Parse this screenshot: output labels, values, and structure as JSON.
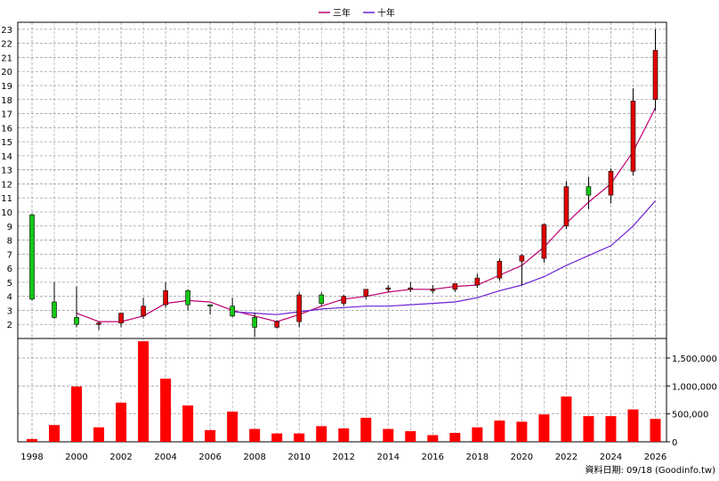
{
  "legend": [
    {
      "label": "三年",
      "color": "#c0006e"
    },
    {
      "label": "十年",
      "color": "#6a1fd6"
    }
  ],
  "footer": {
    "source": "資料日期: 09/18  (Goodinfo.tw)"
  },
  "colors": {
    "up": "#e00000",
    "down": "#14c814",
    "volume": "#ff0000",
    "grid": "#a0a0a0",
    "axis": "#000000"
  },
  "chart_data": {
    "type": "candlestick",
    "price_axis": {
      "ylim": [
        1,
        23.5
      ],
      "ticks": [
        2,
        3,
        4,
        5,
        6,
        7,
        8,
        9,
        10,
        11,
        12,
        13,
        14,
        15,
        16,
        17,
        18,
        19,
        20,
        21,
        22,
        23
      ]
    },
    "volume_axis": {
      "ylim": [
        0,
        1850000
      ],
      "ticks": [
        0,
        500000,
        1000000,
        1500000
      ],
      "tick_labels": [
        "0",
        "500,000",
        "1,000,000",
        "1,500,000"
      ]
    },
    "x_axis": {
      "xlim": [
        1998,
        2026.5
      ],
      "ticks": [
        1998,
        2000,
        2002,
        2004,
        2006,
        2008,
        2010,
        2012,
        2014,
        2016,
        2018,
        2020,
        2022,
        2024,
        2026
      ]
    },
    "candles": [
      {
        "year": 1998,
        "open": 9.8,
        "high": 9.9,
        "low": 3.7,
        "close": 3.8
      },
      {
        "year": 1999,
        "open": 3.6,
        "high": 5.0,
        "low": 2.4,
        "close": 2.5
      },
      {
        "year": 2000,
        "open": 2.5,
        "high": 4.7,
        "low": 1.8,
        "close": 2.0
      },
      {
        "year": 2001,
        "open": 2.0,
        "high": 2.2,
        "low": 1.6,
        "close": 2.1
      },
      {
        "year": 2002,
        "open": 2.1,
        "high": 2.8,
        "low": 1.8,
        "close": 2.8
      },
      {
        "year": 2003,
        "open": 2.6,
        "high": 3.9,
        "low": 2.4,
        "close": 3.3
      },
      {
        "year": 2004,
        "open": 3.4,
        "high": 5.0,
        "low": 3.2,
        "close": 4.4
      },
      {
        "year": 2005,
        "open": 4.4,
        "high": 4.5,
        "low": 3.0,
        "close": 3.4
      },
      {
        "year": 2006,
        "open": 3.4,
        "high": 3.4,
        "low": 2.7,
        "close": 3.3
      },
      {
        "year": 2007,
        "open": 3.3,
        "high": 3.9,
        "low": 2.5,
        "close": 2.6
      },
      {
        "year": 2008,
        "open": 2.5,
        "high": 2.8,
        "low": 1.1,
        "close": 1.8
      },
      {
        "year": 2009,
        "open": 1.8,
        "high": 2.3,
        "low": 1.7,
        "close": 2.2
      },
      {
        "year": 2010,
        "open": 2.2,
        "high": 4.3,
        "low": 1.8,
        "close": 4.1
      },
      {
        "year": 2011,
        "open": 4.1,
        "high": 4.3,
        "low": 3.3,
        "close": 3.5
      },
      {
        "year": 2012,
        "open": 3.5,
        "high": 4.1,
        "low": 3.3,
        "close": 4.0
      },
      {
        "year": 2013,
        "open": 4.0,
        "high": 4.5,
        "low": 3.8,
        "close": 4.5
      },
      {
        "year": 2014,
        "open": 4.5,
        "high": 4.8,
        "low": 4.3,
        "close": 4.6
      },
      {
        "year": 2015,
        "open": 4.5,
        "high": 5.0,
        "low": 4.3,
        "close": 4.6
      },
      {
        "year": 2016,
        "open": 4.4,
        "high": 4.8,
        "low": 4.2,
        "close": 4.5
      },
      {
        "year": 2017,
        "open": 4.5,
        "high": 4.9,
        "low": 4.3,
        "close": 4.9
      },
      {
        "year": 2018,
        "open": 4.8,
        "high": 5.6,
        "low": 4.6,
        "close": 5.3
      },
      {
        "year": 2019,
        "open": 5.3,
        "high": 6.7,
        "low": 5.1,
        "close": 6.5
      },
      {
        "year": 2020,
        "open": 6.5,
        "high": 7.0,
        "low": 4.8,
        "close": 6.9
      },
      {
        "year": 2021,
        "open": 6.7,
        "high": 9.2,
        "low": 6.4,
        "close": 9.1
      },
      {
        "year": 2022,
        "open": 9.0,
        "high": 12.2,
        "low": 8.8,
        "close": 11.8
      },
      {
        "year": 2023,
        "open": 11.8,
        "high": 12.5,
        "low": 10.2,
        "close": 11.2
      },
      {
        "year": 2024,
        "open": 11.2,
        "high": 13.1,
        "low": 10.6,
        "close": 12.9
      },
      {
        "year": 2025,
        "open": 12.9,
        "high": 18.8,
        "low": 12.6,
        "close": 17.9
      },
      {
        "year": 2026,
        "open": 18.0,
        "high": 23.0,
        "low": 17.2,
        "close": 21.5
      }
    ],
    "series": [
      {
        "name": "三年",
        "x": [
          2000,
          2001,
          2002,
          2003,
          2004,
          2005,
          2006,
          2007,
          2008,
          2009,
          2010,
          2011,
          2012,
          2013,
          2014,
          2015,
          2016,
          2017,
          2018,
          2019,
          2020,
          2021,
          2022,
          2023,
          2024,
          2025,
          2026
        ],
        "values": [
          2.8,
          2.2,
          2.2,
          2.6,
          3.5,
          3.7,
          3.6,
          3.0,
          2.6,
          2.2,
          2.7,
          3.3,
          3.8,
          4.0,
          4.3,
          4.5,
          4.5,
          4.7,
          4.8,
          5.5,
          6.2,
          7.5,
          9.2,
          10.7,
          12.0,
          14.3,
          17.4
        ]
      },
      {
        "name": "十年",
        "x": [
          2007,
          2008,
          2009,
          2010,
          2011,
          2012,
          2013,
          2014,
          2015,
          2016,
          2017,
          2018,
          2019,
          2020,
          2021,
          2022,
          2023,
          2024,
          2025,
          2026
        ],
        "values": [
          2.9,
          2.8,
          2.7,
          2.9,
          3.1,
          3.2,
          3.3,
          3.3,
          3.4,
          3.5,
          3.6,
          3.9,
          4.4,
          4.8,
          5.4,
          6.2,
          6.9,
          7.6,
          9.0,
          10.8
        ]
      }
    ],
    "volume": {
      "x": [
        1998,
        1999,
        2000,
        2001,
        2002,
        2003,
        2004,
        2005,
        2006,
        2007,
        2008,
        2009,
        2010,
        2011,
        2012,
        2013,
        2014,
        2015,
        2016,
        2017,
        2018,
        2019,
        2020,
        2021,
        2022,
        2023,
        2024,
        2025,
        2026
      ],
      "values": [
        50000,
        300000,
        990000,
        260000,
        700000,
        1800000,
        1130000,
        650000,
        210000,
        540000,
        230000,
        150000,
        150000,
        280000,
        240000,
        430000,
        230000,
        190000,
        120000,
        160000,
        260000,
        380000,
        360000,
        490000,
        810000,
        460000,
        460000,
        580000,
        410000
      ]
    }
  }
}
